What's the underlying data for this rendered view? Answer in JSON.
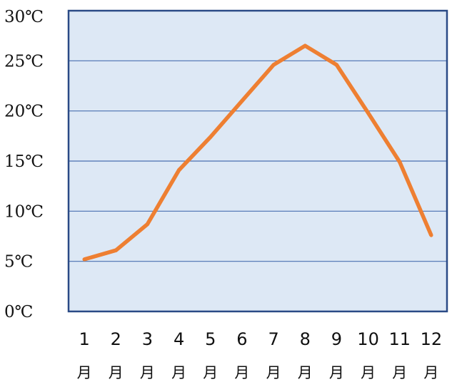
{
  "chart_data": {
    "type": "line",
    "title": "",
    "xlabel": "",
    "ylabel": "",
    "categories": [
      "1",
      "2",
      "3",
      "4",
      "5",
      "6",
      "7",
      "8",
      "9",
      "10",
      "11",
      "12"
    ],
    "category_unit": "月",
    "series": [
      {
        "values": [
          5.2,
          6.1,
          8.7,
          14.1,
          17.4,
          21.0,
          24.6,
          26.5,
          24.6,
          19.8,
          14.9,
          7.6
        ]
      }
    ],
    "ylim": [
      0,
      30
    ],
    "yticks": [
      0,
      5,
      10,
      15,
      20,
      25,
      30
    ],
    "ytick_labels": [
      "0℃",
      "5℃",
      "10℃",
      "15℃",
      "20℃",
      "25℃",
      "30℃"
    ],
    "grid": true,
    "legend": "none",
    "colors": {
      "plot_background": "#dde8f5",
      "frame": "#2a4a86",
      "gridline": "#4a6fb0",
      "line": "#ee7f32"
    }
  }
}
